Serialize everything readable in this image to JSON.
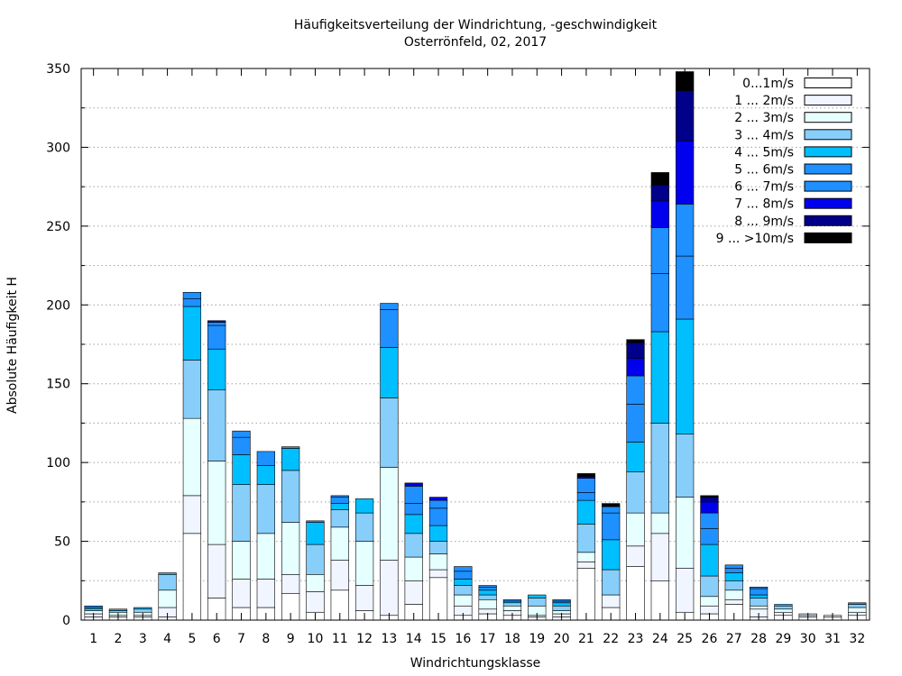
{
  "chart_data": {
    "type": "bar",
    "stacked": true,
    "title": "Häufigkeitsverteilung der Windrichtung, -geschwindigkeit",
    "subtitle": "Osterrönfeld, 02, 2017",
    "xlabel": "Windrichtungsklasse",
    "ylabel": "Absolute Häufigkeit H",
    "ylim": [
      0,
      350
    ],
    "yticks": [
      0,
      50,
      100,
      150,
      200,
      250,
      300,
      350
    ],
    "grid": true,
    "legend_position": "top-right",
    "categories": [
      "1",
      "2",
      "3",
      "4",
      "5",
      "6",
      "7",
      "8",
      "9",
      "10",
      "11",
      "12",
      "13",
      "14",
      "15",
      "16",
      "17",
      "18",
      "19",
      "20",
      "21",
      "22",
      "23",
      "24",
      "25",
      "26",
      "27",
      "28",
      "29",
      "30",
      "31",
      "32"
    ],
    "series": [
      {
        "name": "0...1m/s",
        "color": "#ffffff",
        "values": [
          2,
          2,
          2,
          2,
          55,
          14,
          8,
          8,
          17,
          5,
          19,
          6,
          3,
          10,
          27,
          3,
          4,
          3,
          2,
          2,
          33,
          8,
          34,
          25,
          5,
          4,
          10,
          2,
          3,
          2,
          2,
          3
        ]
      },
      {
        "name": "1 ... 2m/s",
        "color": "#f0f5ff",
        "values": [
          2,
          1,
          1,
          6,
          24,
          34,
          18,
          18,
          12,
          13,
          19,
          16,
          35,
          15,
          5,
          6,
          3,
          3,
          1,
          2,
          4,
          8,
          13,
          30,
          28,
          5,
          3,
          5,
          2,
          1,
          1,
          2
        ]
      },
      {
        "name": "2 ... 3m/s",
        "color": "#e6ffff",
        "values": [
          2,
          2,
          2,
          11,
          49,
          53,
          24,
          29,
          33,
          11,
          21,
          28,
          59,
          15,
          10,
          7,
          6,
          3,
          6,
          2,
          6,
          0,
          21,
          13,
          45,
          6,
          6,
          2,
          2,
          1,
          0,
          3
        ]
      },
      {
        "name": "3 ... 4m/s",
        "color": "#87cefa",
        "values": [
          1,
          1,
          2,
          10,
          37,
          45,
          36,
          31,
          33,
          19,
          11,
          18,
          44,
          15,
          8,
          6,
          3,
          2,
          5,
          3,
          18,
          16,
          26,
          57,
          40,
          13,
          6,
          5,
          2,
          0,
          0,
          2
        ]
      },
      {
        "name": "4 ... 5m/s",
        "color": "#00bfff",
        "values": [
          1,
          1,
          1,
          1,
          34,
          26,
          19,
          12,
          14,
          14,
          4,
          9,
          32,
          12,
          10,
          4,
          3,
          1,
          2,
          2,
          15,
          19,
          19,
          58,
          73,
          20,
          5,
          2,
          1,
          0,
          0,
          0
        ]
      },
      {
        "name": "5 ... 6m/s",
        "color": "#1e90ff",
        "values": [
          0,
          0,
          0,
          0,
          5,
          15,
          11,
          9,
          1,
          1,
          4,
          0,
          24,
          7,
          11,
          5,
          2,
          1,
          0,
          1,
          5,
          17,
          24,
          37,
          40,
          10,
          3,
          4,
          0,
          0,
          0,
          0
        ]
      },
      {
        "name": "6 ... 7m/s",
        "color": "#1e90ff",
        "values": [
          1,
          0,
          0,
          0,
          4,
          2,
          4,
          0,
          0,
          0,
          1,
          0,
          4,
          11,
          5,
          3,
          1,
          0,
          0,
          1,
          9,
          4,
          18,
          29,
          33,
          10,
          2,
          1,
          0,
          0,
          0,
          1
        ]
      },
      {
        "name": "7 ... 8m/s",
        "color": "#0000ee",
        "values": [
          0,
          0,
          0,
          0,
          0,
          1,
          0,
          0,
          0,
          0,
          0,
          0,
          0,
          2,
          2,
          0,
          0,
          0,
          0,
          0,
          1,
          0,
          11,
          17,
          40,
          7,
          0,
          0,
          0,
          0,
          0,
          0
        ]
      },
      {
        "name": "8 ... 9m/s",
        "color": "#00008b",
        "values": [
          0,
          0,
          0,
          0,
          0,
          0,
          0,
          0,
          0,
          0,
          0,
          0,
          0,
          0,
          0,
          0,
          0,
          0,
          0,
          0,
          0,
          0,
          10,
          10,
          32,
          3,
          0,
          0,
          0,
          0,
          0,
          0
        ]
      },
      {
        "name": "9 ... >10m/s",
        "color": "#000000",
        "values": [
          0,
          0,
          0,
          0,
          0,
          0,
          0,
          0,
          0,
          0,
          0,
          0,
          0,
          0,
          0,
          0,
          0,
          0,
          0,
          0,
          2,
          2,
          2,
          8,
          12,
          1,
          0,
          0,
          0,
          0,
          0,
          0
        ]
      }
    ]
  }
}
